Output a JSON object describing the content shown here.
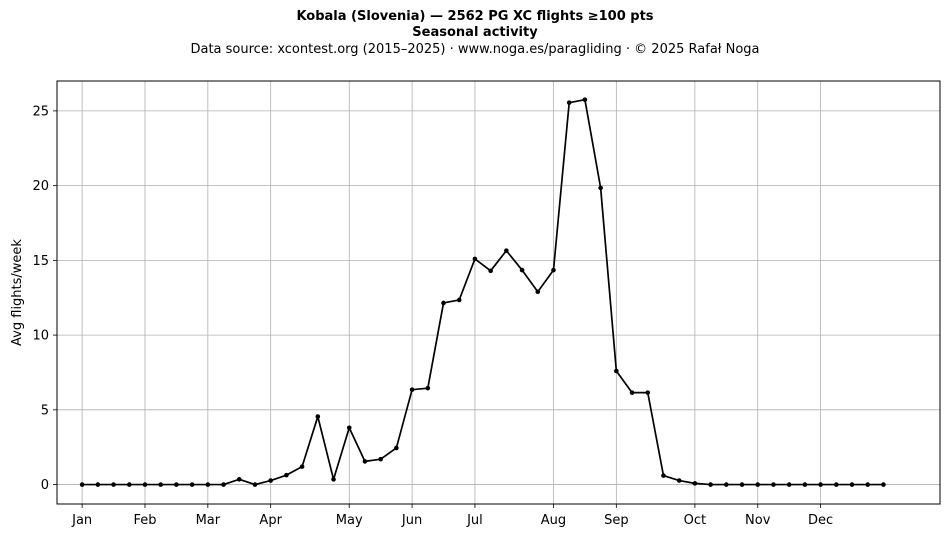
{
  "title": "Kobala (Slovenia)  —  2562 PG XC flights ≥100 pts",
  "subtitle": "Seasonal activity",
  "source_line": "Data source: xcontest.org (2015–2025)  ·  www.noga.es/paragliding  ·  © 2025 Rafał Noga",
  "chart_data": {
    "type": "line",
    "title": "Kobala (Slovenia)  —  2562 PG XC flights ≥100 pts",
    "subtitle": "Seasonal activity",
    "xlabel": "",
    "ylabel": "Avg flights/week",
    "x_unit": "week of year",
    "xlim": [
      -1.6,
      54.6
    ],
    "ylim": [
      -1.3,
      27.0
    ],
    "grid": true,
    "x_ticks": [
      {
        "x": 0,
        "label": "Jan"
      },
      {
        "x": 4,
        "label": "Feb"
      },
      {
        "x": 8,
        "label": "Mar"
      },
      {
        "x": 12,
        "label": "Apr"
      },
      {
        "x": 17,
        "label": "May"
      },
      {
        "x": 21,
        "label": "Jun"
      },
      {
        "x": 25,
        "label": "Jul"
      },
      {
        "x": 30,
        "label": "Aug"
      },
      {
        "x": 34,
        "label": "Sep"
      },
      {
        "x": 39,
        "label": "Oct"
      },
      {
        "x": 43,
        "label": "Nov"
      },
      {
        "x": 47,
        "label": "Dec"
      }
    ],
    "y_ticks": [
      0,
      5,
      10,
      15,
      20,
      25
    ],
    "series": [
      {
        "color": "#000000",
        "x": [
          0,
          1,
          2,
          3,
          4,
          5,
          6,
          7,
          8,
          9,
          10,
          11,
          12,
          13,
          14,
          15,
          16,
          17,
          18,
          19,
          20,
          21,
          22,
          23,
          24,
          25,
          26,
          27,
          28,
          29,
          30,
          31,
          32,
          33,
          34,
          35,
          36,
          37,
          38,
          39,
          40,
          41,
          42,
          43,
          44,
          45,
          46,
          47,
          48,
          49,
          50,
          51
        ],
        "values": [
          0,
          0,
          0,
          0,
          0,
          0,
          0,
          0,
          0,
          0,
          0.35,
          0,
          0.27,
          0.63,
          1.2,
          4.55,
          0.35,
          3.8,
          1.55,
          1.7,
          2.45,
          6.35,
          6.45,
          12.15,
          12.35,
          15.1,
          14.3,
          15.65,
          14.35,
          12.9,
          14.35,
          25.55,
          25.75,
          19.85,
          7.6,
          6.15,
          6.15,
          0.6,
          0.27,
          0.08,
          0,
          0,
          0,
          0,
          0,
          0,
          0,
          0,
          0,
          0,
          0,
          0
        ]
      }
    ]
  }
}
